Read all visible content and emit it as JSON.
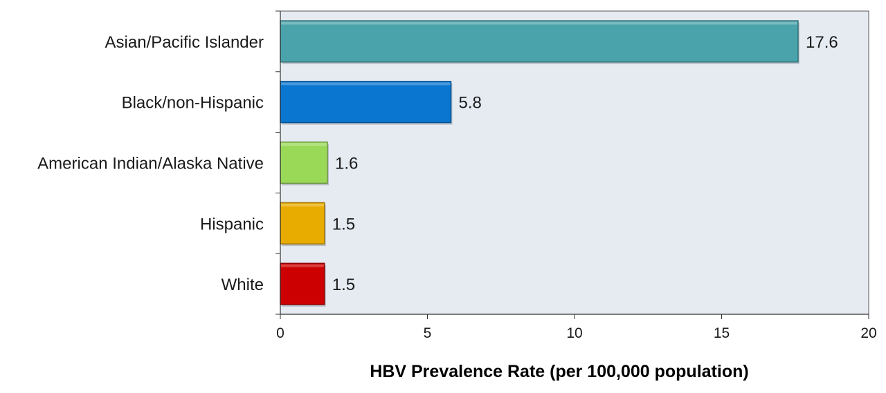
{
  "chart_data": {
    "type": "bar",
    "orientation": "horizontal",
    "categories": [
      "Asian/Pacific Islander",
      "Black/non-Hispanic",
      "American Indian/Alaska Native",
      "Hispanic",
      "White"
    ],
    "values": [
      17.6,
      5.8,
      1.6,
      1.5,
      1.5
    ],
    "value_labels": [
      "17.6",
      "5.8",
      "1.6",
      "1.5",
      "1.5"
    ],
    "colors": [
      "#4aa3ab",
      "#0a76cf",
      "#9ad858",
      "#e8ac00",
      "#cc0000"
    ],
    "xlabel": "HBV  Prevalence Rate (per 100,000 population)",
    "ylabel": "",
    "title": "",
    "xlim": [
      0,
      20
    ],
    "x_ticks": [
      0,
      5,
      10,
      15,
      20
    ],
    "x_tick_labels": [
      "0",
      "5",
      "10",
      "15",
      "20"
    ],
    "grid": false,
    "plot_background": "#e6ebf2",
    "legend": "none"
  }
}
